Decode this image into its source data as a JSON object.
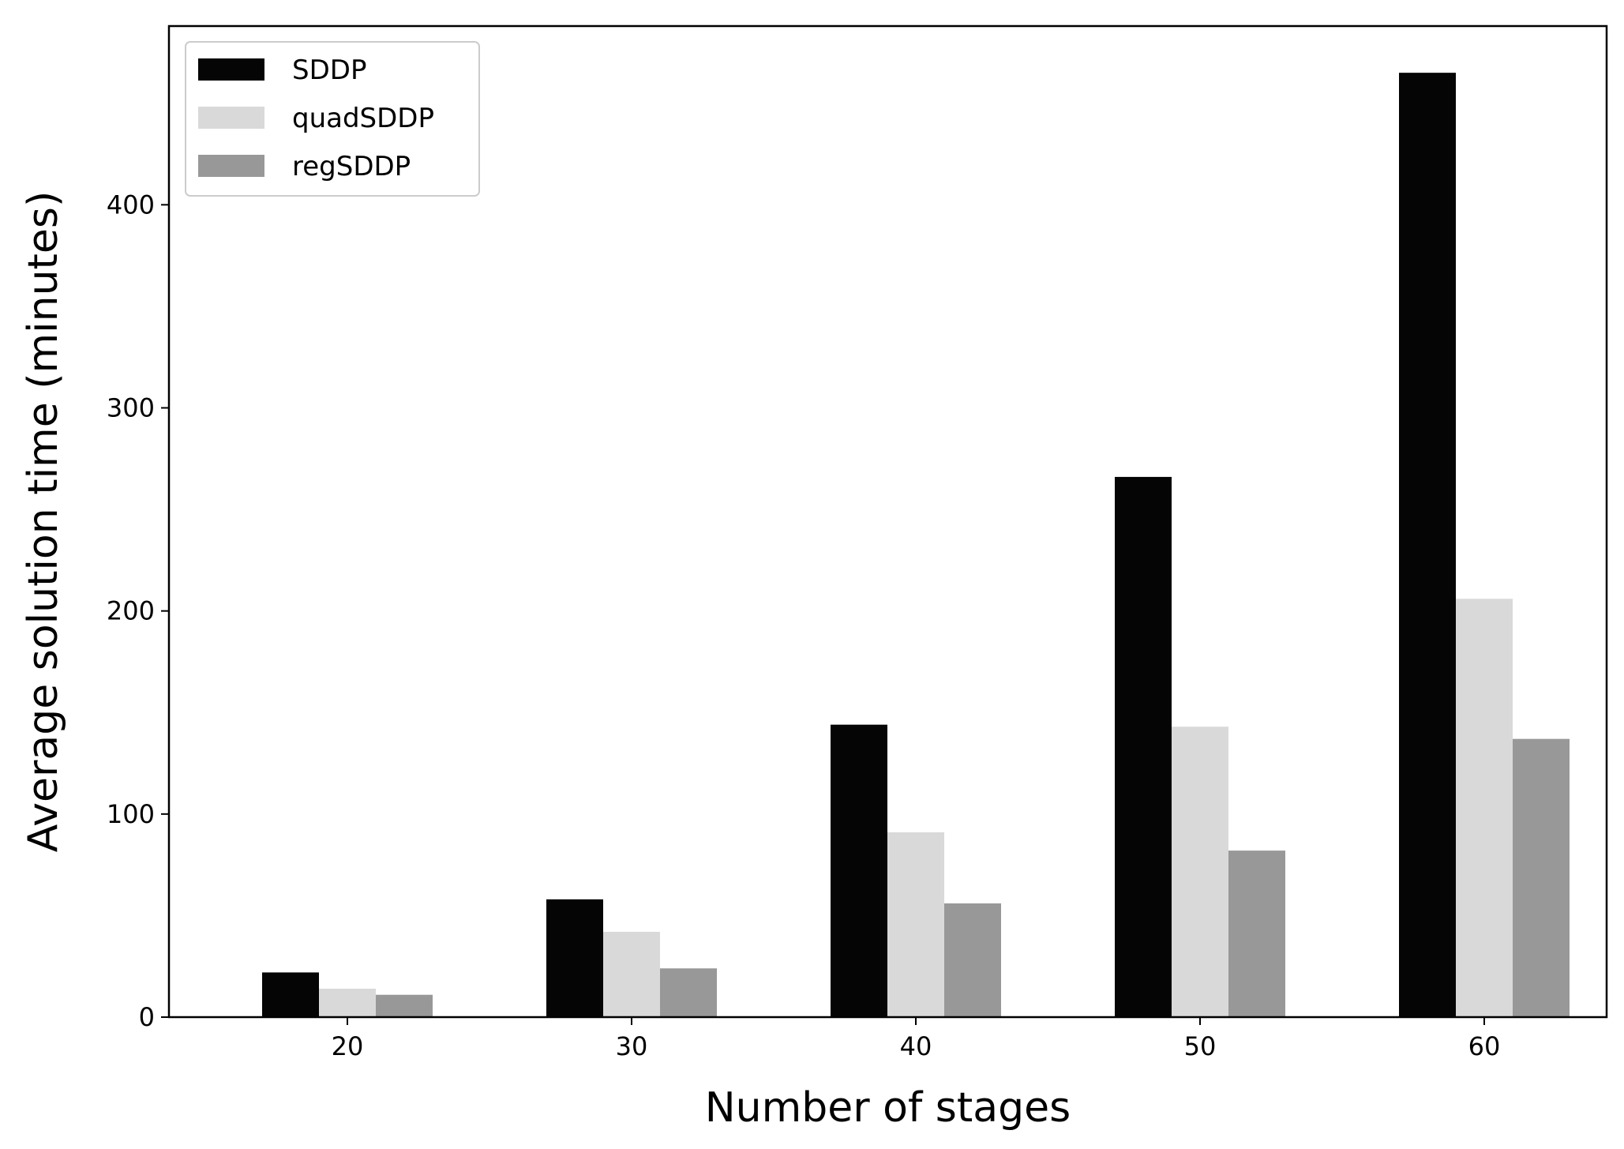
{
  "chart_data": {
    "type": "bar",
    "categories": [
      "20",
      "30",
      "40",
      "50",
      "60"
    ],
    "series": [
      {
        "name": "SDDP",
        "color": "#050505",
        "values": [
          22,
          58,
          144,
          266,
          465
        ]
      },
      {
        "name": "quadSDDP",
        "color": "#d9d9d9",
        "values": [
          14,
          42,
          91,
          143,
          206
        ]
      },
      {
        "name": "regSDDP",
        "color": "#989898",
        "values": [
          11,
          24,
          56,
          82,
          137
        ]
      }
    ],
    "xlabel": "Number of stages",
    "ylabel": "Average solution time (minutes)",
    "ylim": [
      0,
      488
    ],
    "yticks": [
      "0",
      "100",
      "200",
      "300",
      "400"
    ],
    "legend_position": "top-left",
    "grid": false
  }
}
